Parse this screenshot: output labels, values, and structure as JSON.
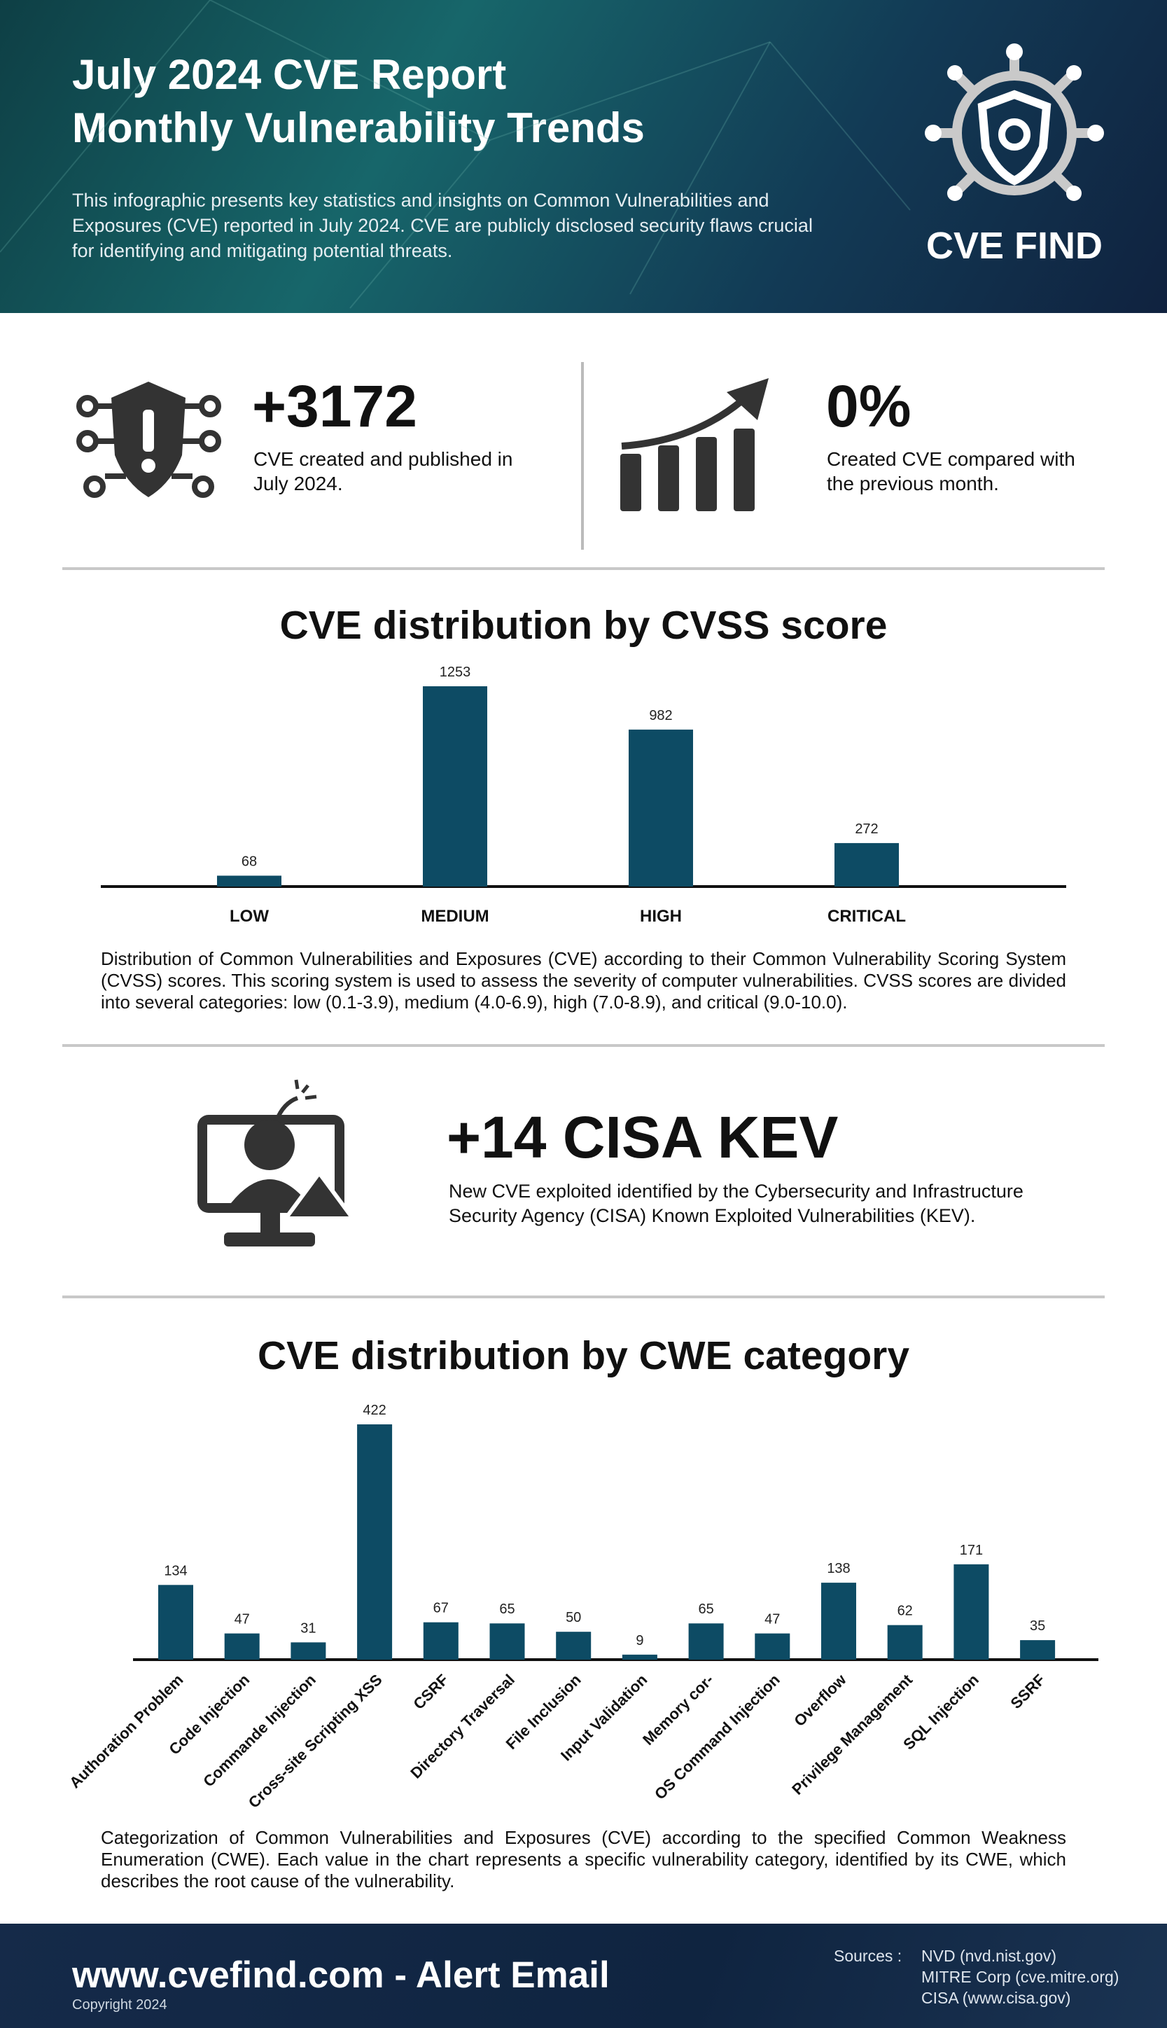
{
  "header": {
    "title_line1": "July 2024 CVE Report",
    "title_line2": "Monthly Vulnerability Trends",
    "description": "This infographic presents key statistics and insights on Common Vulnerabilities and Exposures (CVE) reported in July 2024. CVE are publicly disclosed security flaws crucial for identifying and mitigating potential threats.",
    "logo_text": "CVE FIND"
  },
  "stats": [
    {
      "value": "+3172",
      "text": "CVE created and published in July 2024."
    },
    {
      "value": "0%",
      "text": "Created CVE compared with the previous month."
    }
  ],
  "kev": {
    "title": "+14 CISA  KEV",
    "text": "New CVE exploited identified by the Cybersecurity and Infrastructure Security Agency (CISA) Known Exploited Vulnerabilities (KEV)."
  },
  "chart_data": [
    {
      "type": "bar",
      "title": "CVE distribution by CVSS score",
      "categories": [
        "LOW",
        "MEDIUM",
        "HIGH",
        "CRITICAL"
      ],
      "values": [
        68,
        1253,
        982,
        272
      ],
      "color": "#0d4b64",
      "caption": "Distribution of Common Vulnerabilities and Exposures (CVE) according to their Common Vulnerability Scoring System (CVSS) scores. This scoring system is used to assess the severity of computer vulnerabilities. CVSS scores are divided into several categories: low (0.1-3.9), medium (4.0-6.9), high (7.0-8.9), and critical (9.0-10.0)."
    },
    {
      "type": "bar",
      "title": "CVE distribution by CWE category",
      "categories": [
        "Authoration Problem",
        "Code Injection",
        "Commande Injection",
        "Cross-site Scripting XSS",
        "CSRF",
        "Directory Traversal",
        "File Inclusion",
        "Input Validation",
        "Memory cor-",
        "OS Command Injection",
        "Overflow",
        "Privilege Management",
        "SQL Injection",
        "SSRF"
      ],
      "values": [
        134,
        47,
        31,
        422,
        67,
        65,
        50,
        9,
        65,
        47,
        138,
        62,
        171,
        35
      ],
      "color": "#0d4b64",
      "caption": "Categorization of Common Vulnerabilities and Exposures (CVE) according to the specified Common Weakness Enumeration (CWE). Each value in the chart represents a specific vulnerability category, identified by its CWE, which describes the root cause of the vulnerability."
    }
  ],
  "footer": {
    "site": "www.cvefind.com - Alert Email",
    "copyright": "Copyright 2024",
    "sources_label": "Sources :",
    "sources": [
      "NVD (nvd.nist.gov)",
      "MITRE Corp (cve.mitre.org)",
      "CISA (www.cisa.gov)"
    ]
  }
}
